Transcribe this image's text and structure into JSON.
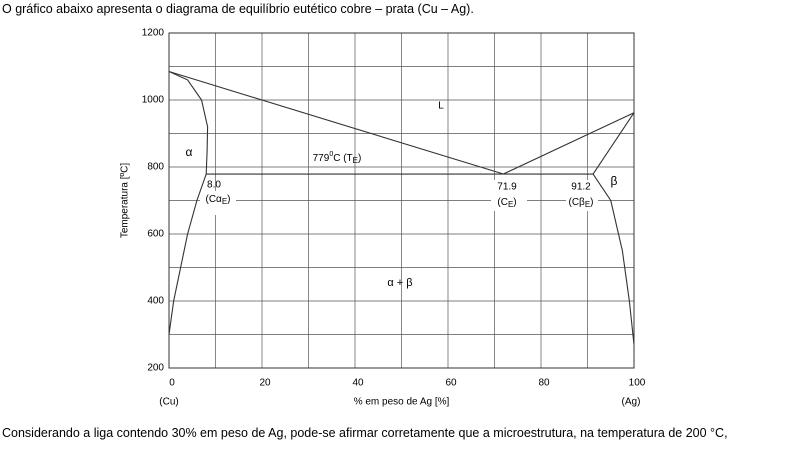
{
  "intro": "O gráfico abaixo apresenta o diagrama de equilíbrio eutético cobre – prata (Cu – Ag).",
  "chart_data": {
    "type": "line",
    "x_label": "% em peso de Ag [%]",
    "y_label": "Temperatura [ºC]",
    "xlim": [
      0,
      100
    ],
    "ylim": [
      200,
      1200
    ],
    "xticks": [
      0,
      20,
      40,
      60,
      80,
      100
    ],
    "yticks": [
      200,
      400,
      600,
      800,
      1000,
      1200
    ],
    "x_end_labels": [
      "(Cu)",
      "(Ag)"
    ],
    "grid": true,
    "series": [
      {
        "color": "#333333",
        "x": [
          0,
          71.9
        ],
        "values": [
          1085,
          779
        ]
      },
      {
        "color": "#333333",
        "x": [
          71.9,
          100
        ],
        "values": [
          779,
          962
        ]
      },
      {
        "color": "#333333",
        "x": [
          0,
          4,
          7,
          8.3,
          8.2,
          8
        ],
        "values": [
          1085,
          1060,
          1000,
          920,
          850,
          779
        ]
      },
      {
        "color": "#333333",
        "x": [
          8,
          6,
          4,
          2.5,
          1,
          0
        ],
        "values": [
          779,
          700,
          600,
          500,
          400,
          300
        ]
      },
      {
        "color": "#333333",
        "x": [
          8,
          91.2
        ],
        "values": [
          779,
          779
        ]
      },
      {
        "color": "#333333",
        "x": [
          91.2,
          100
        ],
        "values": [
          779,
          962
        ]
      },
      {
        "color": "#333333",
        "x": [
          91.2,
          95,
          97.5,
          99,
          100
        ],
        "values": [
          779,
          700,
          550,
          400,
          270
        ]
      }
    ],
    "annotations": {
      "liquid": "L",
      "alpha": "α",
      "beta": "β",
      "alpha_beta": "α + β",
      "eutectic": [
        "779",
        "0",
        "C (T",
        "E",
        ")"
      ],
      "c_alpha_value": "8.0",
      "c_alpha": [
        "(Cα",
        "E",
        ")"
      ],
      "c_e_value": "71.9",
      "c_e": [
        "(C",
        "E",
        ")"
      ],
      "c_beta_value": "91.2",
      "c_beta": [
        "(Cβ",
        "E",
        ")"
      ]
    }
  },
  "question": "Considerando a liga contendo 30% em peso de Ag, pode-se afirmar corretamente que a microestrutura, na temperatura de 200 °C,"
}
